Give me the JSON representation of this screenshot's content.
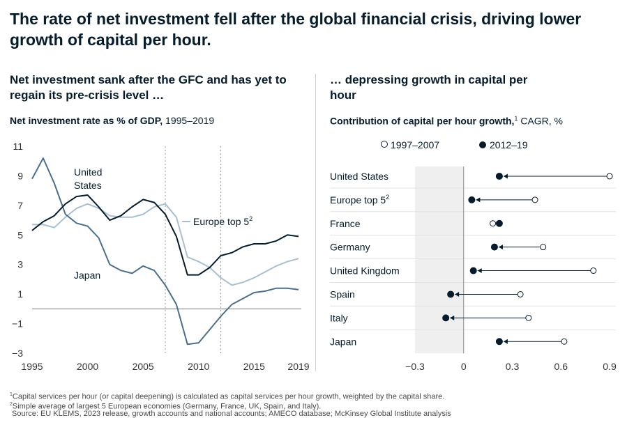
{
  "title": "The rate of net investment fell after the global financial crisis, driving lower growth of capital per hour.",
  "left": {
    "subtitle": "Net investment sank after the GFC and has yet to regain its pre-crisis level …",
    "label_bold": "Net investment rate as % of GDP,",
    "label_rest": " 1995–2019",
    "annotations": {
      "us_line1": "United",
      "us_line2": "States",
      "japan": "Japan",
      "europe": "Europe top 5",
      "europe_sup": "2"
    }
  },
  "right": {
    "subtitle": "… depressing growth in capital per hour",
    "label_bold": "Contribution of capital per hour growth,",
    "label_sup": "1",
    "label_rest": " CAGR, %",
    "legend": {
      "early": "1997–2007",
      "late": "2012–19"
    }
  },
  "colors": {
    "us": "#051c2c",
    "japan": "#4a6f8e",
    "europe": "#a7bfd3",
    "dot": "#051c2c",
    "shade": "#efefef"
  },
  "chart_data": [
    {
      "type": "line",
      "title": "Net investment rate as % of GDP, 1995–2019",
      "ylim": [
        -3,
        11
      ],
      "xlim": [
        1995,
        2019
      ],
      "x_ticks": [
        "1995",
        "2000",
        "2005",
        "2010",
        "2015",
        "2019"
      ],
      "y_ticks": [
        "11",
        "9",
        "7",
        "5",
        "3",
        "1",
        "−1",
        "−3"
      ],
      "reference_lines_x": [
        2007,
        2012
      ],
      "x": [
        1995,
        1996,
        1997,
        1998,
        1999,
        2000,
        2001,
        2002,
        2003,
        2004,
        2005,
        2006,
        2007,
        2008,
        2009,
        2010,
        2011,
        2012,
        2013,
        2014,
        2015,
        2016,
        2017,
        2018,
        2019
      ],
      "series": [
        {
          "name": "United States",
          "values": [
            5.3,
            5.9,
            6.3,
            7.1,
            7.6,
            7.7,
            6.9,
            6.0,
            6.3,
            6.9,
            7.4,
            7.2,
            6.4,
            4.9,
            2.3,
            2.3,
            2.8,
            3.6,
            3.8,
            4.2,
            4.4,
            4.4,
            4.6,
            5.0,
            4.9
          ]
        },
        {
          "name": "Europe top 5",
          "values": [
            5.7,
            5.7,
            5.5,
            6.2,
            6.8,
            7.1,
            6.8,
            6.3,
            6.2,
            6.2,
            6.4,
            6.9,
            7.1,
            6.2,
            3.5,
            3.2,
            2.8,
            2.1,
            1.6,
            1.8,
            2.1,
            2.5,
            2.9,
            3.2,
            3.4
          ]
        },
        {
          "name": "Japan",
          "values": [
            8.8,
            10.2,
            8.5,
            6.4,
            5.8,
            5.6,
            4.8,
            3.0,
            2.6,
            2.4,
            2.9,
            2.6,
            1.6,
            0.3,
            -2.4,
            -2.3,
            -1.4,
            -0.5,
            0.3,
            0.7,
            1.1,
            1.2,
            1.4,
            1.4,
            1.3
          ]
        }
      ]
    },
    {
      "type": "scatter",
      "title": "Contribution of capital per hour growth, CAGR, %",
      "xlim": [
        -0.3,
        0.9
      ],
      "x_ticks": [
        "−0.3",
        "0",
        "0.3",
        "0.6",
        "0.9"
      ],
      "categories": [
        "United States",
        "Europe top 5",
        "France",
        "Germany",
        "United Kingdom",
        "Spain",
        "Italy",
        "Japan"
      ],
      "category_sups": [
        "",
        "2",
        "",
        "",
        "",
        "",
        "",
        ""
      ],
      "series": [
        {
          "name": "1997–2007",
          "values": [
            0.9,
            0.44,
            0.18,
            0.49,
            0.8,
            0.35,
            0.4,
            0.62
          ]
        },
        {
          "name": "2012–19",
          "values": [
            0.22,
            0.05,
            0.22,
            0.19,
            0.06,
            -0.08,
            -0.11,
            0.22
          ]
        }
      ]
    }
  ],
  "footnotes": [
    {
      "sup": "1",
      "text": "Capital services per hour (or capital deepening) is calculated as capital services per hour growth, weighted by the capital share."
    },
    {
      "sup": "2",
      "text": "Simple average of largest 5 European economies (Germany, France, UK, Spain, and Italy)."
    },
    {
      "sup": "",
      "text": "Source: EU KLEMS, 2023 release, growth accounts and national accounts; AMECO database; McKinsey Global Institute analysis"
    }
  ]
}
